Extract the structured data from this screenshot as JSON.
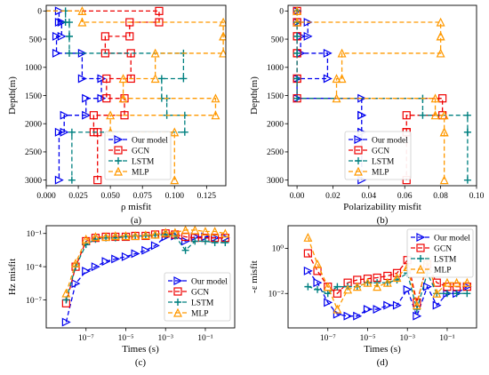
{
  "colors": {
    "Our model": "#0000ee",
    "GCN": "#ee0000",
    "LSTM": "#008080",
    "MLP": "#ff9900"
  },
  "chart_data": [
    {
      "type": "line",
      "panel_label": "(a)",
      "xlabel": "ρ misfit",
      "ylabel": "Depth(m)",
      "xlim": [
        0,
        0.14
      ],
      "ylim": [
        3100,
        -100
      ],
      "y_inverted": true,
      "xticks": [
        0.0,
        0.025,
        0.05,
        0.075,
        0.1,
        0.125
      ],
      "xtick_labels": [
        "0.000",
        "0.025",
        "0.050",
        "0.075",
        "0.100",
        "0.125"
      ],
      "yticks": [
        0,
        500,
        1000,
        1500,
        2000,
        2500,
        3000
      ],
      "ytick_labels": [
        "0",
        "500",
        "1000",
        "1500",
        "2000",
        "2500",
        "3000"
      ],
      "legend": "lower-right",
      "depth_bounds": [
        0,
        200,
        450,
        750,
        1200,
        1550,
        1850,
        2150,
        3000
      ],
      "series": [
        {
          "name": "Our model",
          "marker": "triangle-right",
          "values": [
            0.01,
            0.012,
            0.008,
            0.028,
            0.043,
            0.031,
            0.014,
            0.01
          ]
        },
        {
          "name": "GCN",
          "marker": "square",
          "values": [
            0.088,
            0.065,
            0.046,
            0.066,
            0.047,
            0.061,
            0.037,
            0.04
          ]
        },
        {
          "name": "LSTM",
          "marker": "plus",
          "values": [
            0.015,
            0.018,
            0.018,
            0.107,
            0.09,
            0.094,
            0.108,
            0.02
          ]
        },
        {
          "name": "MLP",
          "marker": "triangle-up",
          "values": [
            0.028,
            0.138,
            0.138,
            0.085,
            0.06,
            0.132,
            0.05,
            0.1
          ]
        }
      ]
    },
    {
      "type": "line",
      "panel_label": "(b)",
      "xlabel": "Polarizability misfit",
      "ylabel": "Depth(m)",
      "xlim": [
        -0.005,
        0.1
      ],
      "ylim": [
        3100,
        -100
      ],
      "y_inverted": true,
      "xticks": [
        0.0,
        0.02,
        0.04,
        0.06,
        0.08,
        0.1
      ],
      "xtick_labels": [
        "0.00",
        "0.02",
        "0.04",
        "0.06",
        "0.08",
        "0.10"
      ],
      "yticks": [
        0,
        500,
        1000,
        1500,
        2000,
        2500,
        3000
      ],
      "ytick_labels": [
        "0",
        "500",
        "1000",
        "1500",
        "2000",
        "2500",
        "3000"
      ],
      "legend": "lower-right",
      "depth_bounds": [
        0,
        200,
        450,
        750,
        1200,
        1550,
        1850,
        2150,
        3000
      ],
      "series": [
        {
          "name": "Our model",
          "marker": "triangle-right",
          "values": [
            0.0,
            0.006,
            0.002,
            0.017,
            0.0,
            0.036,
            0.036,
            0.036
          ]
        },
        {
          "name": "GCN",
          "marker": "square",
          "values": [
            0.0,
            0.0,
            0.0,
            0.0,
            0.0,
            0.081,
            0.061,
            0.061
          ]
        },
        {
          "name": "LSTM",
          "marker": "plus",
          "values": [
            0.0,
            0.0,
            0.0,
            0.0,
            0.0,
            0.07,
            0.095,
            0.095
          ]
        },
        {
          "name": "MLP",
          "marker": "triangle-up",
          "values": [
            0.0,
            0.08,
            0.08,
            0.025,
            0.022,
            0.077,
            0.082,
            0.082
          ]
        }
      ]
    },
    {
      "type": "line",
      "panel_label": "(c)",
      "xlabel": "Times (s)",
      "ylabel": "Hz misfit",
      "x_scale": "log",
      "y_scale": "log",
      "xlim": [
        1e-09,
        3
      ],
      "ylim": [
        3e-10,
        0.5
      ],
      "xticks": [
        1e-07,
        1e-05,
        0.001,
        0.1
      ],
      "xtick_labels": [
        "10⁻⁷",
        "10⁻⁵",
        "10⁻³",
        "10⁻¹"
      ],
      "yticks": [
        1e-07,
        0.0001,
        0.1
      ],
      "ytick_labels": [
        "10⁻⁷",
        "10⁻⁴",
        "10⁻¹"
      ],
      "legend": "lower-right",
      "x": [
        1e-08,
        3e-08,
        1e-07,
        3e-07,
        1e-06,
        3e-06,
        1e-05,
        3e-05,
        0.0001,
        0.0003,
        0.001,
        0.003,
        0.01,
        0.03,
        0.1,
        0.3,
        1
      ],
      "series": [
        {
          "name": "Our model",
          "marker": "triangle-right",
          "values": [
            1e-09,
            3e-06,
            4e-05,
            0.0001,
            0.0003,
            0.0005,
            0.0008,
            0.0015,
            0.003,
            0.008,
            0.05,
            0.06,
            0.02,
            0.05,
            0.05,
            0.04,
            0.04
          ]
        },
        {
          "name": "GCN",
          "marker": "square",
          "values": [
            5e-08,
            0.0001,
            0.02,
            0.04,
            0.05,
            0.05,
            0.05,
            0.06,
            0.06,
            0.08,
            0.1,
            0.08,
            0.05,
            0.04,
            0.04,
            0.04,
            0.04
          ]
        },
        {
          "name": "LSTM",
          "marker": "plus",
          "values": [
            1e-07,
            0.0001,
            0.01,
            0.03,
            0.04,
            0.04,
            0.05,
            0.06,
            0.06,
            0.07,
            0.08,
            0.06,
            0.003,
            0.02,
            0.02,
            0.015,
            0.015
          ]
        },
        {
          "name": "MLP",
          "marker": "triangle-up",
          "values": [
            4e-07,
            0.0002,
            0.03,
            0.05,
            0.05,
            0.06,
            0.06,
            0.06,
            0.07,
            0.08,
            0.12,
            0.12,
            0.2,
            0.2,
            0.15,
            0.15,
            0.1
          ]
        }
      ]
    },
    {
      "type": "line",
      "panel_label": "(d)",
      "xlabel": "Times (s)",
      "ylabel": "-ε misfit",
      "x_scale": "log",
      "y_scale": "log",
      "xlim": [
        1e-09,
        3
      ],
      "ylim": [
        0.0003,
        10
      ],
      "xticks": [
        1e-07,
        1e-05,
        0.001,
        0.1
      ],
      "xtick_labels": [
        "10⁻⁷",
        "10⁻⁵",
        "10⁻³",
        "10⁻¹"
      ],
      "yticks": [
        0.01,
        1
      ],
      "ytick_labels": [
        "10⁻²",
        "10⁰"
      ],
      "legend": "top-right",
      "x": [
        1e-08,
        3e-08,
        1e-07,
        3e-07,
        1e-06,
        3e-06,
        1e-05,
        3e-05,
        0.0001,
        0.0003,
        0.001,
        0.003,
        0.01,
        0.03,
        0.1,
        0.3,
        1
      ],
      "series": [
        {
          "name": "Our model",
          "marker": "triangle-right",
          "values": [
            0.1,
            0.03,
            0.004,
            0.0012,
            0.001,
            0.001,
            0.002,
            0.002,
            0.003,
            0.003,
            0.015,
            0.001,
            0.02,
            0.003,
            0.01,
            0.01,
            0.02
          ]
        },
        {
          "name": "GCN",
          "marker": "square",
          "values": [
            0.6,
            0.1,
            0.02,
            0.01,
            0.03,
            0.04,
            0.045,
            0.05,
            0.06,
            0.08,
            0.3,
            0.004,
            0.2,
            0.03,
            0.02,
            0.02,
            0.02
          ]
        },
        {
          "name": "LSTM",
          "marker": "plus",
          "values": [
            0.02,
            0.015,
            0.01,
            0.02,
            0.02,
            0.02,
            0.03,
            0.03,
            0.03,
            0.04,
            0.08,
            0.002,
            0.08,
            0.01,
            0.01,
            0.01,
            0.01
          ]
        },
        {
          "name": "MLP",
          "marker": "triangle-up",
          "values": [
            3,
            0.2,
            0.02,
            0.002,
            0.015,
            0.02,
            0.03,
            0.02,
            0.03,
            0.05,
            0.15,
            0.003,
            0.3,
            0.01,
            0.03,
            0.03,
            0.03
          ]
        }
      ]
    }
  ]
}
